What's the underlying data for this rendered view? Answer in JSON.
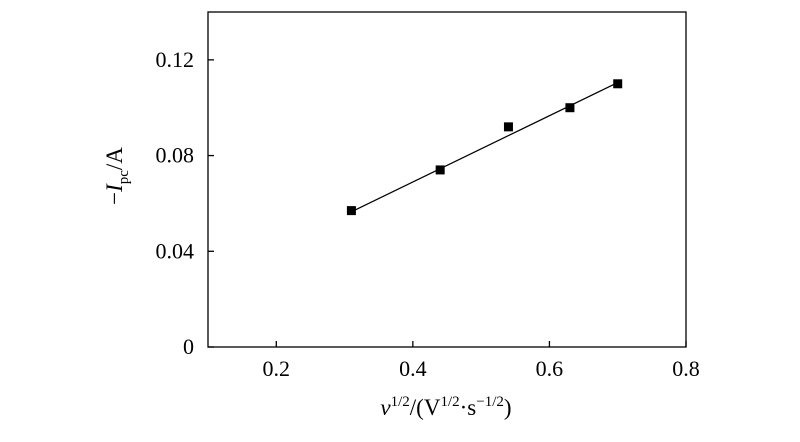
{
  "chart_data": {
    "type": "scatter",
    "xlabel": {
      "main": "v",
      "main_sup": "1/2",
      "rest": "/(V",
      "rest_sup": "1/2",
      "dot": "·s",
      "end_sup": "−1/2",
      "close": ")"
    },
    "ylabel": {
      "sign": "−",
      "main": "I",
      "sub": "pc",
      "rest": "/A"
    },
    "xlim": [
      0.1,
      0.8
    ],
    "ylim": [
      0,
      0.14
    ],
    "x_ticks": [
      {
        "value": 0.2,
        "label": "0.2"
      },
      {
        "value": 0.4,
        "label": "0.4"
      },
      {
        "value": 0.6,
        "label": "0.6"
      },
      {
        "value": 0.8,
        "label": "0.8"
      }
    ],
    "y_ticks": [
      {
        "value": 0,
        "label": "0"
      },
      {
        "value": 0.04,
        "label": "0.04"
      },
      {
        "value": 0.08,
        "label": "0.08"
      },
      {
        "value": 0.12,
        "label": "0.12"
      }
    ],
    "series": [
      {
        "marker": "square",
        "color": "#000000",
        "points": [
          {
            "x": 0.31,
            "y": 0.057
          },
          {
            "x": 0.44,
            "y": 0.074
          },
          {
            "x": 0.54,
            "y": 0.092
          },
          {
            "x": 0.63,
            "y": 0.1
          },
          {
            "x": 0.7,
            "y": 0.11
          }
        ]
      }
    ],
    "fit_line": {
      "x": [
        0.31,
        0.7
      ],
      "y": [
        0.0565,
        0.1105
      ],
      "color": "#000000"
    },
    "grid": false,
    "legend": "none"
  }
}
